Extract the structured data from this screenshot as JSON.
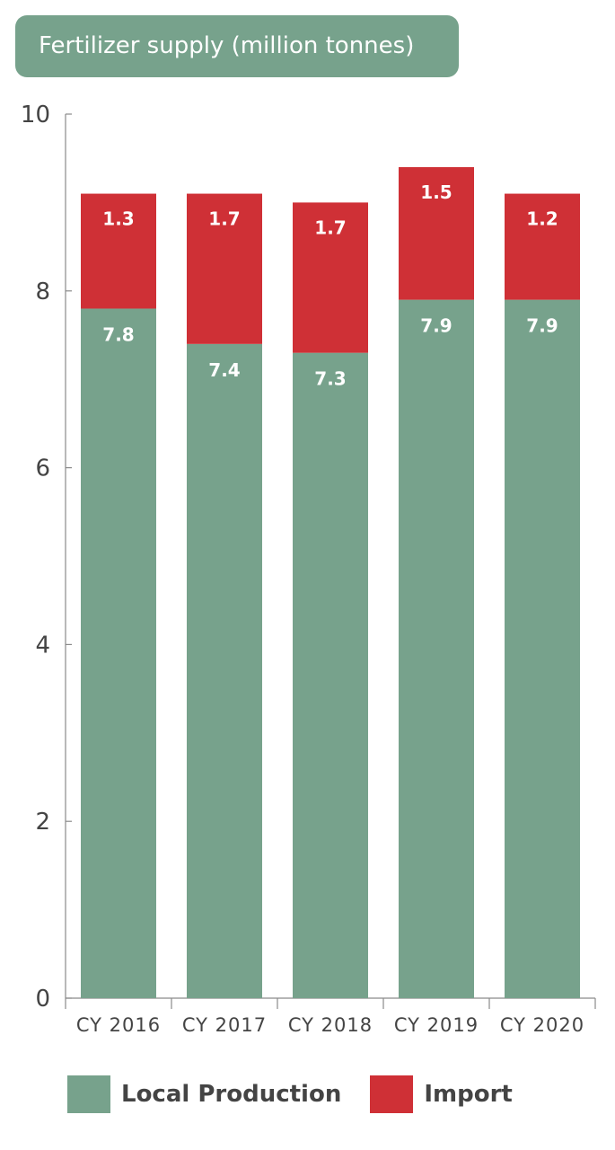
{
  "chart_data": {
    "type": "bar",
    "stacked": true,
    "title": "Fertilizer supply (million tonnes)",
    "categories": [
      "CY 2016",
      "CY 2017",
      "CY 2018",
      "CY 2019",
      "CY 2020"
    ],
    "series": [
      {
        "name": "Local Production",
        "values": [
          7.8,
          7.4,
          7.3,
          7.9,
          7.9
        ],
        "labels": [
          "7.8",
          "7.4",
          "7.3",
          "7.9",
          "7.9"
        ],
        "color": "#77a28c"
      },
      {
        "name": "Import",
        "values": [
          1.3,
          1.7,
          1.7,
          1.5,
          1.2
        ],
        "labels": [
          "1.3",
          "1.7",
          "1.7",
          "1.5",
          "1.2"
        ],
        "color": "#cf3036"
      }
    ],
    "ylim": [
      0,
      10
    ],
    "yticks": [
      0,
      2,
      4,
      6,
      8,
      10
    ],
    "ytick_labels": [
      "0",
      "2",
      "4",
      "6",
      "8",
      "10"
    ],
    "grid": false,
    "legend_position": "bottom"
  }
}
